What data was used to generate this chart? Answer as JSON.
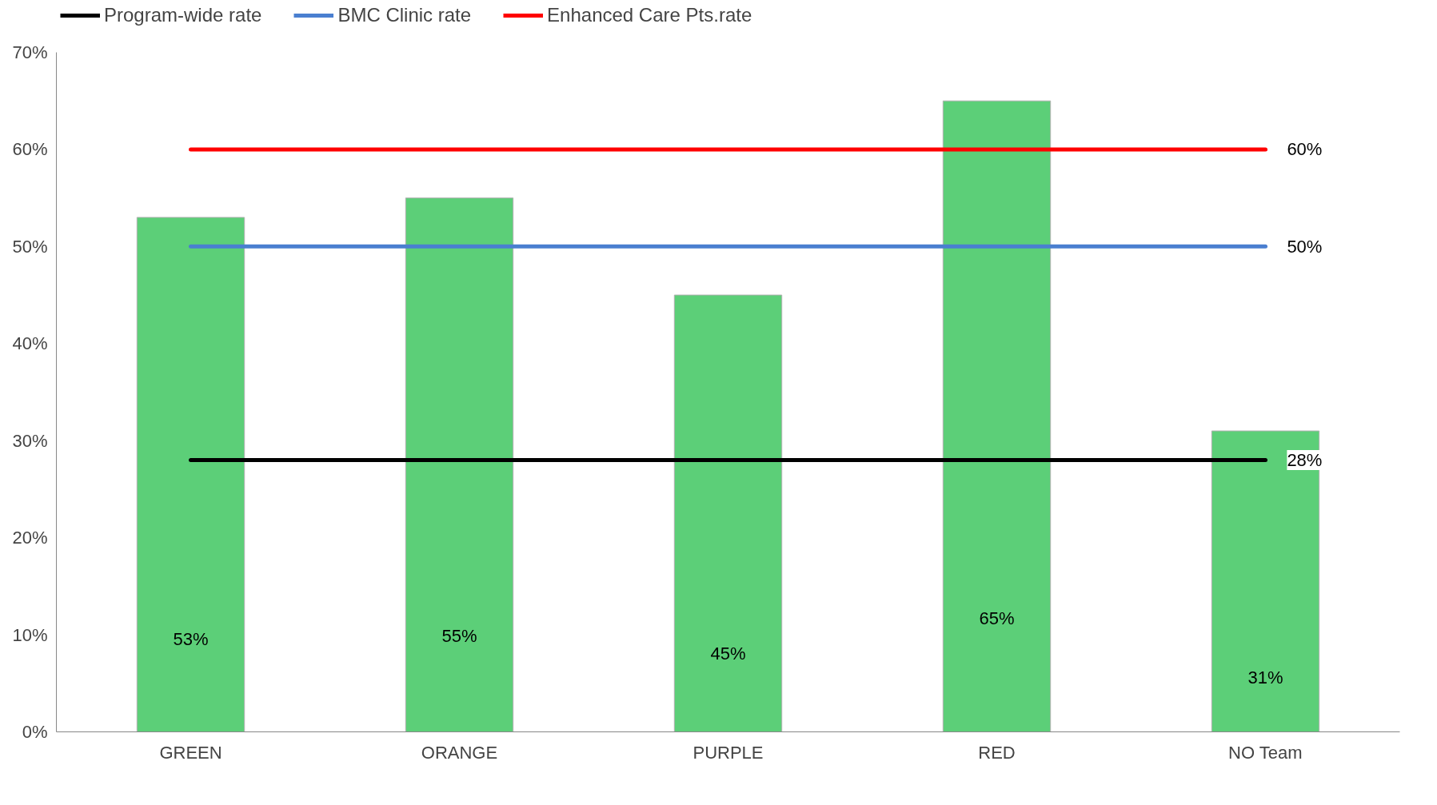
{
  "chart_data": {
    "type": "bar",
    "categories": [
      "GREEN",
      "ORANGE",
      "PURPLE",
      "RED",
      "NO Team"
    ],
    "series": [
      {
        "color": "#5ccf78",
        "values": [
          53,
          55,
          45,
          65,
          31
        ],
        "value_labels": [
          "53%",
          "55%",
          "45%",
          "65%",
          "31%"
        ]
      },
      {
        "type": "line",
        "name": "Program-wide rate",
        "color": "#000000",
        "values": [
          28,
          28,
          28,
          28,
          28
        ],
        "value_labels": [
          null,
          null,
          null,
          null,
          "28%"
        ]
      },
      {
        "type": "line",
        "name": "BMC Clinic rate",
        "color": "#4a7fd0",
        "values": [
          50,
          50,
          50,
          50,
          50
        ],
        "value_labels": [
          null,
          null,
          null,
          null,
          "50%"
        ]
      },
      {
        "type": "line",
        "name": "Enhanced Care Pts.rate",
        "color": "#ff0000",
        "values": [
          60,
          60,
          60,
          60,
          60
        ],
        "value_labels": [
          null,
          null,
          null,
          null,
          "60%"
        ]
      }
    ],
    "ylim": [
      0,
      70
    ],
    "yticks": [
      {
        "value": 0,
        "label": "0%"
      },
      {
        "value": 10,
        "label": "10%"
      },
      {
        "value": 20,
        "label": "20%"
      },
      {
        "value": 30,
        "label": "30%"
      },
      {
        "value": 40,
        "label": "40%"
      },
      {
        "value": 50,
        "label": "50%"
      },
      {
        "value": 60,
        "label": "60%"
      },
      {
        "value": 70,
        "label": "70%"
      }
    ],
    "grid": false,
    "legend": "top",
    "line_style": "solid",
    "marker": "none"
  }
}
